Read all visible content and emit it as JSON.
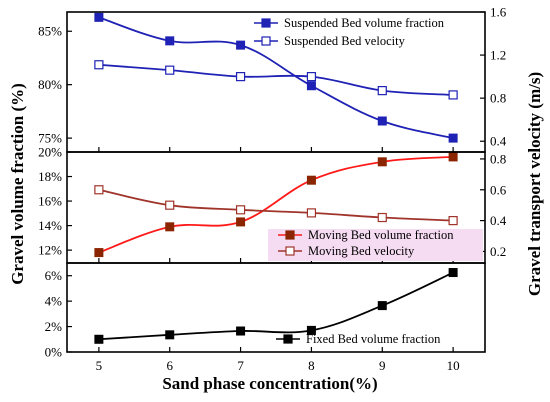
{
  "chart_data": {
    "type": "line",
    "x": [
      5,
      6,
      7,
      8,
      9,
      10
    ],
    "xlabel": "Sand phase concentration(%)",
    "xlim": [
      4.55,
      10.45
    ],
    "xticks": [
      "5",
      "6",
      "7",
      "8",
      "9",
      "10"
    ],
    "ylabel_left": "Gravel volume fraction (%)",
    "ylabel_right": "Gravel transport velocity  (m/s)",
    "panels": [
      {
        "id": "top",
        "left_axis": {
          "range": [
            73.7,
            86.8
          ],
          "ticks": [
            75,
            80,
            85
          ],
          "tick_labels": [
            "75%",
            "80%",
            "85%"
          ]
        },
        "right_axis": {
          "range": [
            0.3,
            1.6
          ],
          "ticks": [
            0.4,
            0.8,
            1.2,
            1.6
          ],
          "tick_labels": [
            "0.4",
            "0.8",
            "1.2",
            "1.6"
          ]
        },
        "legend_position": "top-right",
        "series": [
          {
            "name": "Suspended Bed volume fraction",
            "axis": "left",
            "marker": "filled-square",
            "color": "#1f22b4",
            "values": [
              86.3,
              84.1,
              83.7,
              79.9,
              76.6,
              75.0
            ]
          },
          {
            "name": "Suspended Bed velocity",
            "axis": "right",
            "marker": "open-square",
            "color": "#1f22b4",
            "values": [
              1.11,
              1.06,
              1.0,
              1.0,
              0.87,
              0.83
            ]
          }
        ]
      },
      {
        "id": "middle",
        "left_axis": {
          "range": [
            10.95,
            20.0
          ],
          "ticks": [
            12,
            14,
            16,
            18,
            20
          ],
          "tick_labels": [
            "12%",
            "14%",
            "16%",
            "18%",
            "20%"
          ]
        },
        "right_axis": {
          "range": [
            0.125,
            0.845
          ],
          "ticks": [
            0.2,
            0.4,
            0.6,
            0.8
          ],
          "tick_labels": [
            "0.2",
            "0.4",
            "0.6",
            "0.8"
          ]
        },
        "legend_position": "bottom-right",
        "series": [
          {
            "name": "Moving Bed volume fraction",
            "axis": "left",
            "marker": "filled-square",
            "color": "#ff1a1a",
            "marker_color": "#8b2500",
            "values": [
              11.8,
              13.9,
              14.3,
              17.7,
              19.2,
              19.6
            ]
          },
          {
            "name": "Moving Bed velocity",
            "axis": "right",
            "marker": "open-square",
            "color": "#a0342b",
            "marker_color": "#a0342b",
            "values": [
              0.6,
              0.5,
              0.47,
              0.45,
              0.42,
              0.4
            ]
          }
        ]
      },
      {
        "id": "bottom",
        "left_axis": {
          "range": [
            0,
            7
          ],
          "ticks": [
            0,
            2,
            4,
            6
          ],
          "tick_labels": [
            "0%",
            "2%",
            "4%",
            "6%"
          ]
        },
        "legend_position": "bottom-right",
        "series": [
          {
            "name": "Fixed Bed volume fraction",
            "axis": "left",
            "marker": "filled-square",
            "color": "#000000",
            "values": [
              1.0,
              1.35,
              1.65,
              1.7,
              3.65,
              6.25
            ]
          }
        ]
      }
    ],
    "legend": [
      "Suspended Bed volume fraction",
      "Suspended Bed velocity",
      "Moving Bed volume fraction",
      "Moving Bed velocity",
      "Fixed Bed volume fraction"
    ]
  }
}
